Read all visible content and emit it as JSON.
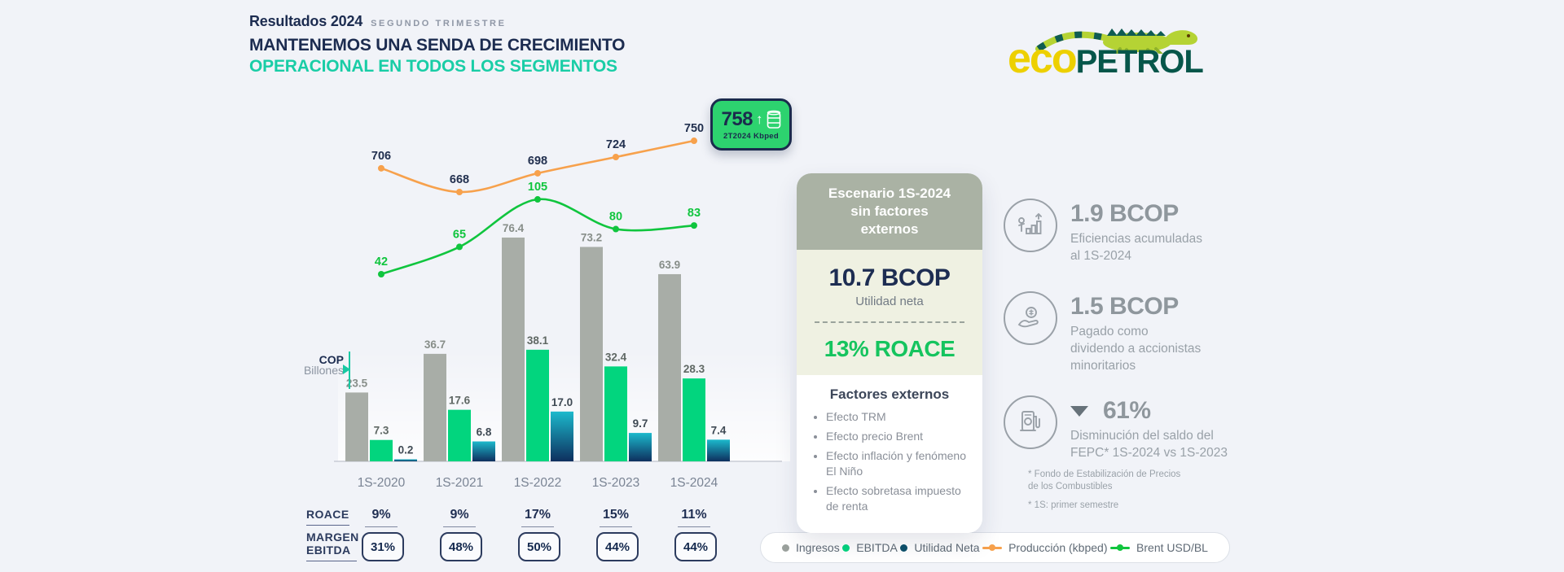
{
  "page": {
    "background": "#f1f3f8"
  },
  "header": {
    "kicker": "Resultados 2024",
    "kicker_note": "SEGUNDO TRIMESTRE",
    "title_line1": "MANTENEMOS UNA SENDA DE CRECIMIENTO",
    "title_line2": "OPERACIONAL EN TODOS LOS SEGMENTOS"
  },
  "logo": {
    "eco": "eco",
    "petrol": "PETROL"
  },
  "chart_data": {
    "type": "bar+line",
    "categories": [
      "1S-2020",
      "1S-2021",
      "1S-2022",
      "1S-2023",
      "1S-2024"
    ],
    "axis_unit": {
      "line1": "COP",
      "line2": "Billones"
    },
    "bar_series": [
      {
        "name": "Ingresos",
        "color": "#a8ada7",
        "label_color": "#878e89",
        "values": [
          23.5,
          36.7,
          76.4,
          73.2,
          63.9
        ]
      },
      {
        "name": "EBITDA",
        "color": "#02d57e",
        "label_color": "#5f6864",
        "values": [
          7.3,
          17.6,
          38.1,
          32.4,
          28.3
        ]
      },
      {
        "name": "Utilidad Neta",
        "color": "#0c506a",
        "gradient": [
          "#1cb9cc",
          "#0e2f5e"
        ],
        "label_color": "#3f4a54",
        "values": [
          0.2,
          6.8,
          17.0,
          9.7,
          7.4
        ]
      }
    ],
    "line_series": [
      {
        "name": "Producción (kbped)",
        "color": "#f7a14c",
        "label_color": "#22304f",
        "values": [
          706,
          668,
          698,
          724,
          750
        ]
      },
      {
        "name": "Brent USD/BL",
        "color": "#10c53e",
        "label_color": "#10c53e",
        "values": [
          42,
          65,
          105,
          80,
          83
        ]
      }
    ],
    "badge": {
      "value": "758",
      "sub": "2T2024 Kbped",
      "bg": "#2dd36f",
      "border": "#1b2b4d"
    },
    "roace": {
      "label": "ROACE",
      "values": [
        "9%",
        "9%",
        "17%",
        "15%",
        "11%"
      ]
    },
    "margen": {
      "label": "MARGEN EBITDA",
      "values": [
        "31%",
        "48%",
        "50%",
        "44%",
        "44%"
      ]
    },
    "legend": [
      {
        "label": "Ingresos",
        "color": "#9aa09c",
        "marker": "dot"
      },
      {
        "label": "EBITDA",
        "color": "#02d57e",
        "marker": "dot"
      },
      {
        "label": "Utilidad Neta",
        "color": "#0c506a",
        "marker": "dot"
      },
      {
        "label": "Producción (kbped)",
        "color": "#f7a14c",
        "marker": "line"
      },
      {
        "label": "Brent USD/BL",
        "color": "#10c53e",
        "marker": "line"
      }
    ]
  },
  "scenario_card": {
    "header": "Escenario 1S-2024 sin factores externos",
    "metric_value": "10.7 BCOP",
    "metric_label": "Utilidad neta",
    "roace_value": "13% ROACE",
    "factors_title": "Factores externos",
    "factors": [
      "Efecto TRM",
      "Efecto precio Brent",
      "Efecto inflación y fenómeno El Niño",
      "Efecto sobretasa impuesto de renta"
    ]
  },
  "stats": [
    {
      "icon": "growth-chart",
      "value": "1.9 BCOP",
      "desc": "Eficiencias acumuladas\nal 1S-2024"
    },
    {
      "icon": "hand-coin",
      "value": "1.5 BCOP",
      "desc": "Pagado como\ndividendo a accionistas\nminoritarios"
    },
    {
      "icon": "fuel-pump",
      "value": "61%",
      "direction": "down",
      "desc": "Disminución del saldo del\nFEPC* 1S-2024 vs 1S-2023"
    }
  ],
  "footnotes": [
    "* Fondo de Estabilización de Precios\nde los Combustibles",
    "* 1S: primer semestre"
  ]
}
